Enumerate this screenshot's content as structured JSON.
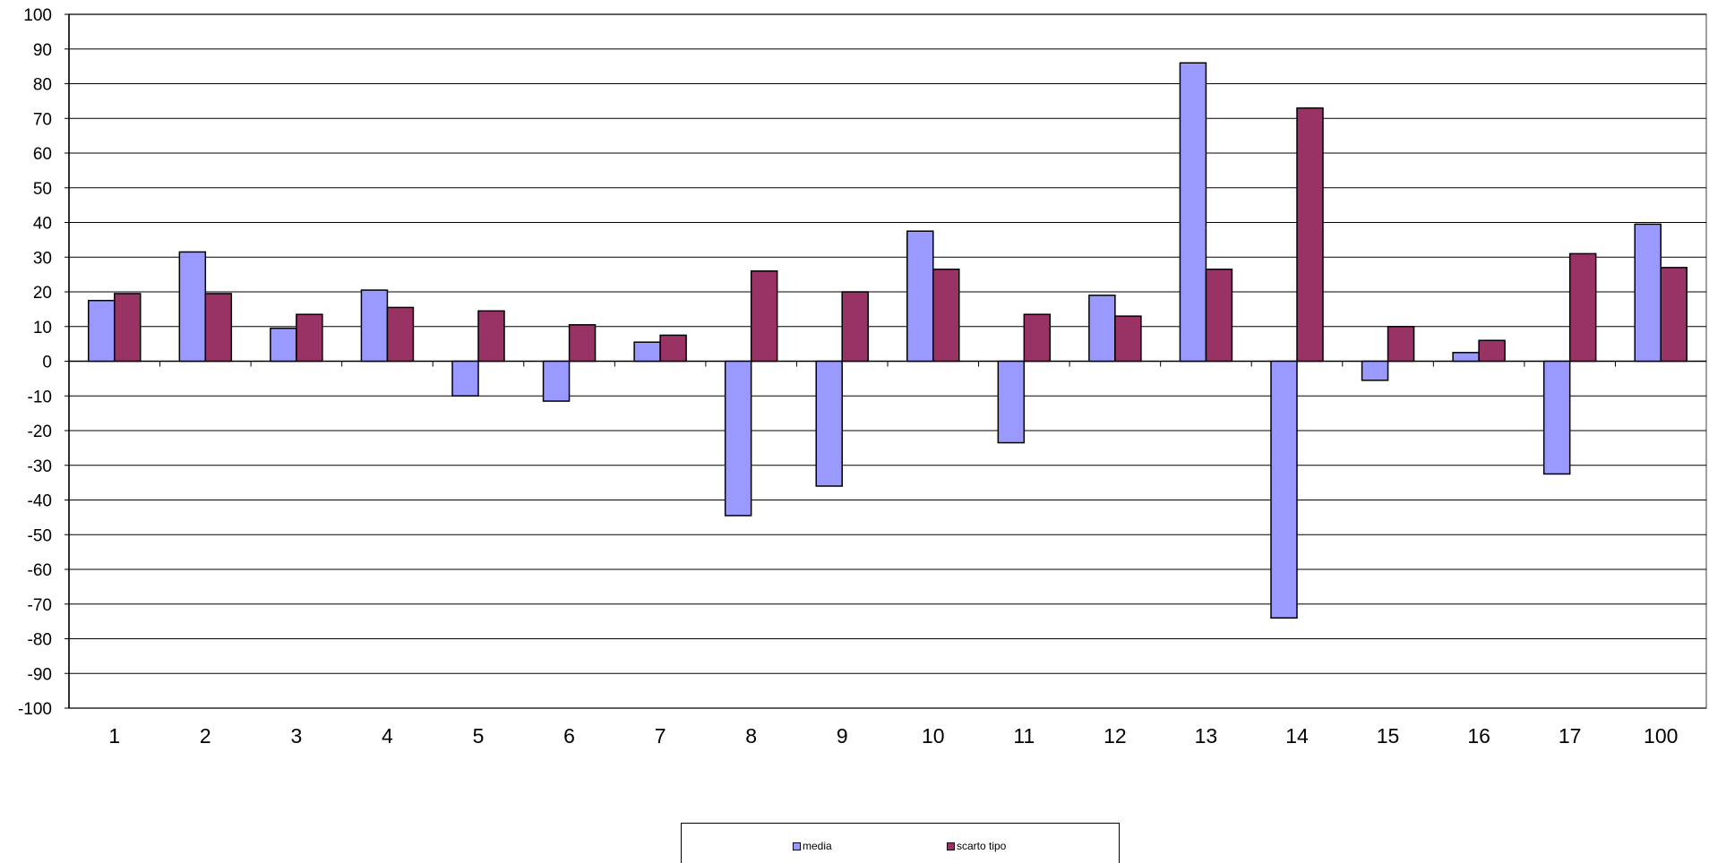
{
  "chart_data": {
    "type": "bar",
    "categories": [
      "1",
      "2",
      "3",
      "4",
      "5",
      "6",
      "7",
      "8",
      "9",
      "10",
      "11",
      "12",
      "13",
      "14",
      "15",
      "16",
      "17",
      "100"
    ],
    "series": [
      {
        "name": "media",
        "color": "#9999FF",
        "values": [
          17.5,
          31.5,
          9.5,
          20.5,
          -10,
          -11.5,
          5.5,
          -44.5,
          -36,
          37.5,
          -23.5,
          19,
          86,
          -74,
          -5.5,
          2.5,
          -32.5,
          39.5
        ]
      },
      {
        "name": "scarto tipo",
        "color": "#993366",
        "values": [
          19.5,
          19.5,
          13.5,
          15.5,
          14.5,
          10.5,
          7.5,
          26,
          20,
          26.5,
          13.5,
          13,
          26.5,
          73,
          10,
          6,
          31,
          27
        ]
      }
    ],
    "ylim": [
      -100,
      100
    ],
    "ytick_step": 10,
    "grid": true,
    "legend_position": "bottom",
    "title": "",
    "xlabel": "",
    "ylabel": ""
  }
}
